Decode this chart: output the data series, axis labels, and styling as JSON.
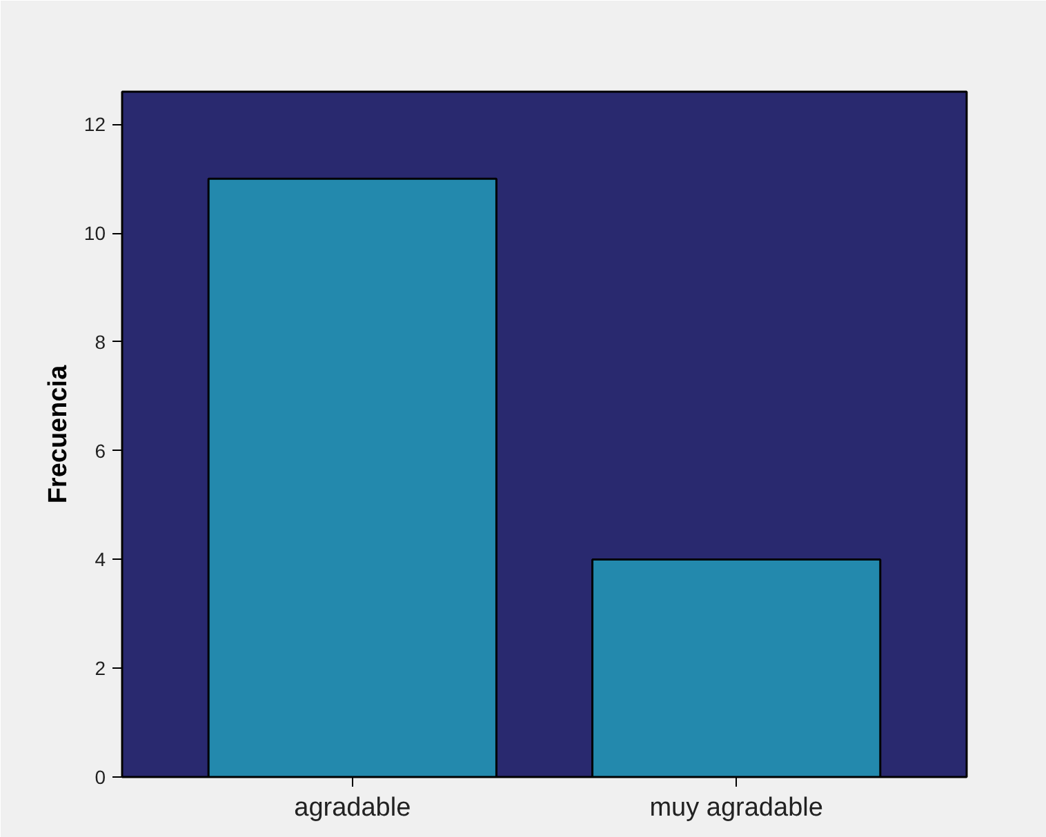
{
  "chart_data": {
    "type": "bar",
    "ylabel": "Frecuencia",
    "categories": [
      "agradable",
      "muy agradable"
    ],
    "values": [
      11,
      4
    ],
    "color": "#2389ad",
    "ylim": [
      0,
      12.6
    ],
    "yticks": [
      0,
      2,
      4,
      6,
      8,
      10,
      12
    ],
    "grid": false
  }
}
